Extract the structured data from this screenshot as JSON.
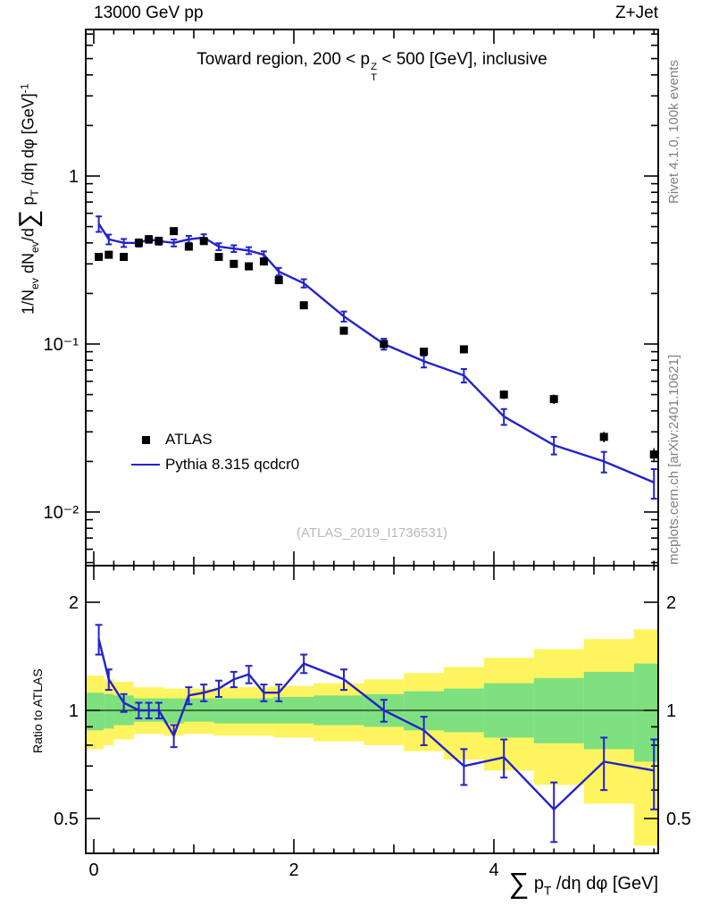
{
  "header": {
    "left": "13000 GeV pp",
    "right": "Z+Jet"
  },
  "labels": {
    "title": [
      {
        "t": "Toward region, 200 < p"
      },
      {
        "stack": {
          "sup": "Z",
          "sub": "T"
        }
      },
      {
        "t": " < 500 [GeV], inclusive"
      }
    ],
    "ylabel": [
      {
        "t": "1/N"
      },
      {
        "sub": "ev"
      },
      {
        "t": " dN"
      },
      {
        "sub": "ev"
      },
      {
        "t": "/d"
      },
      {
        "t": "∑",
        "big": true
      },
      {
        "t": " p"
      },
      {
        "sub": "T"
      },
      {
        "t": " /dη dφ  [GeV]"
      },
      {
        "sup": "-1"
      }
    ],
    "xlabel": [
      {
        "t": "∑",
        "big": true
      },
      {
        "t": " p"
      },
      {
        "sub": "T"
      },
      {
        "t": " /dη dφ [GeV]"
      }
    ],
    "ratio_ylabel": "Ratio to ATLAS",
    "watermark": "(ATLAS_2019_I1736531)"
  },
  "side_notes": {
    "top_right": "Rivet 4.1.0,  100k events",
    "bottom_right": "mcplots.cern.ch [arXiv:2401.10621]"
  },
  "legend": {
    "entries": [
      {
        "label": "ATLAS"
      },
      {
        "label": "Pythia 8.315 qcdcr0"
      }
    ]
  },
  "axes": {
    "x": {
      "ticks": [
        {
          "v": 0,
          "label": "0"
        },
        {
          "v": 2,
          "label": "2"
        },
        {
          "v": 4,
          "label": "4"
        }
      ]
    },
    "y_main": {
      "ticks": [
        {
          "v": 1,
          "label": "1"
        },
        {
          "v": 0.1,
          "label": "10⁻¹"
        },
        {
          "v": 0.01,
          "label": "10⁻²"
        }
      ]
    },
    "y_ratio": {
      "ticks": [
        {
          "v": 2,
          "label": "2"
        },
        {
          "v": 1,
          "label": "1"
        },
        {
          "v": 0.5,
          "label": "0.5"
        }
      ]
    }
  },
  "colors": {
    "mc_blue": "#2222cc",
    "data_black": "#000000",
    "band_yellow": "#fdf45f",
    "band_green": "#7ee07e",
    "side_text": "#808080",
    "watermark": "#b9b9b9"
  },
  "chart_data": [
    {
      "type": "line",
      "title": "Toward region, 200 < pT(Z) < 500 [GeV], inclusive",
      "xlabel": "Sum pT /deta dphi [GeV]",
      "ylabel": "1/N_ev dN_ev/dSum pT /deta dphi [GeV]^-1",
      "xscale": "linear",
      "yscale": "log",
      "xlim": [
        -0.08,
        5.64
      ],
      "ylim": [
        0.0048,
        7.4
      ],
      "grid": false,
      "legend_position": "left-middle",
      "x": [
        0.05,
        0.15,
        0.3,
        0.45,
        0.55,
        0.65,
        0.8,
        0.95,
        1.1,
        1.25,
        1.4,
        1.55,
        1.7,
        1.85,
        2.1,
        2.5,
        2.9,
        3.3,
        3.7,
        4.1,
        4.6,
        5.1,
        5.6
      ],
      "series": [
        {
          "name": "ATLAS",
          "style": "square-markers",
          "color": "#000000",
          "y": [
            0.33,
            0.34,
            0.33,
            0.4,
            0.42,
            0.41,
            0.47,
            0.38,
            0.41,
            0.33,
            0.3,
            0.29,
            0.31,
            0.24,
            0.17,
            0.12,
            0.1,
            0.09,
            0.093,
            0.05,
            0.047,
            0.028,
            0.022
          ],
          "yerr": [
            0.012,
            0.012,
            0.012,
            0.013,
            0.014,
            0.014,
            0.015,
            0.013,
            0.014,
            0.012,
            0.011,
            0.011,
            0.011,
            0.009,
            0.008,
            0.006,
            0.005,
            0.005,
            0.005,
            0.003,
            0.003,
            0.002,
            0.002
          ]
        },
        {
          "name": "Pythia 8.315 qcdcr0",
          "style": "line+errorbars",
          "color": "#2222cc",
          "y": [
            0.52,
            0.42,
            0.4,
            0.4,
            0.42,
            0.41,
            0.4,
            0.42,
            0.43,
            0.38,
            0.37,
            0.36,
            0.34,
            0.27,
            0.23,
            0.146,
            0.1,
            0.079,
            0.065,
            0.037,
            0.025,
            0.02,
            0.015
          ],
          "yerr": [
            0.055,
            0.028,
            0.022,
            0.02,
            0.02,
            0.02,
            0.019,
            0.02,
            0.02,
            0.018,
            0.017,
            0.017,
            0.016,
            0.014,
            0.013,
            0.01,
            0.0075,
            0.0065,
            0.006,
            0.004,
            0.003,
            0.0028,
            0.003
          ]
        }
      ]
    },
    {
      "type": "line",
      "ylabel": "Ratio to ATLAS",
      "yscale": "log",
      "xlim": [
        -0.08,
        5.64
      ],
      "ylim": [
        0.4,
        2.53
      ],
      "reference_line": 1,
      "x": [
        0.05,
        0.15,
        0.3,
        0.45,
        0.55,
        0.65,
        0.8,
        0.95,
        1.1,
        1.25,
        1.4,
        1.55,
        1.7,
        1.85,
        2.1,
        2.5,
        2.9,
        3.3,
        3.7,
        4.1,
        4.6,
        5.1,
        5.6
      ],
      "series": [
        {
          "name": "Pythia 8.315 qcdcr0 / ATLAS",
          "color": "#2222cc",
          "y": [
            1.58,
            1.22,
            1.05,
            1.0,
            1.0,
            1.0,
            0.85,
            1.1,
            1.12,
            1.15,
            1.22,
            1.26,
            1.12,
            1.12,
            1.35,
            1.22,
            1.0,
            0.88,
            0.7,
            0.74,
            0.53,
            0.72,
            0.68
          ],
          "yerr": [
            0.15,
            0.08,
            0.06,
            0.05,
            0.05,
            0.05,
            0.06,
            0.06,
            0.06,
            0.06,
            0.06,
            0.07,
            0.06,
            0.06,
            0.08,
            0.08,
            0.07,
            0.08,
            0.08,
            0.09,
            0.1,
            0.12,
            0.15
          ]
        }
      ],
      "bands": [
        {
          "color": "yellow",
          "bins": [
            [
              -0.08,
              0.1,
              0.78,
              1.25
            ],
            [
              0.1,
              0.2,
              0.8,
              1.22
            ],
            [
              0.2,
              0.4,
              0.83,
              1.2
            ],
            [
              0.4,
              0.7,
              0.86,
              1.16
            ],
            [
              0.7,
              0.9,
              0.85,
              1.15
            ],
            [
              0.9,
              1.2,
              0.86,
              1.15
            ],
            [
              1.2,
              1.5,
              0.85,
              1.16
            ],
            [
              1.5,
              1.8,
              0.85,
              1.16
            ],
            [
              1.8,
              2.2,
              0.84,
              1.17
            ],
            [
              2.2,
              2.7,
              0.82,
              1.19
            ],
            [
              2.7,
              3.1,
              0.8,
              1.22
            ],
            [
              3.1,
              3.5,
              0.77,
              1.27
            ],
            [
              3.5,
              3.9,
              0.73,
              1.32
            ],
            [
              3.9,
              4.4,
              0.68,
              1.4
            ],
            [
              4.4,
              4.9,
              0.62,
              1.48
            ],
            [
              4.9,
              5.4,
              0.55,
              1.58
            ],
            [
              5.4,
              5.64,
              0.42,
              1.68
            ]
          ]
        },
        {
          "color": "green",
          "bins": [
            [
              -0.08,
              0.1,
              0.88,
              1.12
            ],
            [
              0.1,
              0.2,
              0.89,
              1.11
            ],
            [
              0.2,
              0.4,
              0.91,
              1.1
            ],
            [
              0.4,
              0.7,
              0.93,
              1.08
            ],
            [
              0.7,
              0.9,
              0.92,
              1.08
            ],
            [
              0.9,
              1.2,
              0.93,
              1.08
            ],
            [
              1.2,
              1.5,
              0.92,
              1.08
            ],
            [
              1.5,
              1.8,
              0.92,
              1.08
            ],
            [
              1.8,
              2.2,
              0.92,
              1.09
            ],
            [
              2.2,
              2.7,
              0.91,
              1.1
            ],
            [
              2.7,
              3.1,
              0.9,
              1.11
            ],
            [
              3.1,
              3.5,
              0.88,
              1.13
            ],
            [
              3.5,
              3.9,
              0.87,
              1.15
            ],
            [
              3.9,
              4.4,
              0.84,
              1.19
            ],
            [
              4.4,
              4.9,
              0.81,
              1.23
            ],
            [
              4.9,
              5.4,
              0.78,
              1.28
            ],
            [
              5.4,
              5.64,
              0.72,
              1.35
            ]
          ]
        }
      ]
    }
  ]
}
